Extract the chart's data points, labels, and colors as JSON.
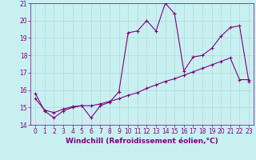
{
  "xlabel": "Windchill (Refroidissement éolien,°C)",
  "background_color": "#c8f0f0",
  "line_color": "#800080",
  "grid_color": "#b0d8d8",
  "xlim": [
    -0.5,
    23.5
  ],
  "ylim": [
    14,
    21
  ],
  "xticks": [
    0,
    1,
    2,
    3,
    4,
    5,
    6,
    7,
    8,
    9,
    10,
    11,
    12,
    13,
    14,
    15,
    16,
    17,
    18,
    19,
    20,
    21,
    22,
    23
  ],
  "yticks": [
    14,
    15,
    16,
    17,
    18,
    19,
    20,
    21
  ],
  "line1_x": [
    0,
    1,
    2,
    3,
    4,
    5,
    6,
    7,
    8,
    9,
    10,
    11,
    12,
    13,
    14,
    15,
    16,
    17,
    18,
    19,
    20,
    21,
    22,
    23
  ],
  "line1_y": [
    15.8,
    14.8,
    14.4,
    14.8,
    15.0,
    15.1,
    14.4,
    15.1,
    15.3,
    15.9,
    19.3,
    19.4,
    20.0,
    19.4,
    21.0,
    20.4,
    17.1,
    17.9,
    18.0,
    18.4,
    19.1,
    19.6,
    19.7,
    16.5
  ],
  "line2_x": [
    0,
    1,
    2,
    3,
    4,
    5,
    6,
    7,
    8,
    9,
    10,
    11,
    12,
    13,
    14,
    15,
    16,
    17,
    18,
    19,
    20,
    21,
    22,
    23
  ],
  "line2_y": [
    15.5,
    14.85,
    14.7,
    14.9,
    15.05,
    15.1,
    15.1,
    15.2,
    15.35,
    15.5,
    15.7,
    15.85,
    16.1,
    16.3,
    16.5,
    16.65,
    16.85,
    17.05,
    17.25,
    17.45,
    17.65,
    17.85,
    16.6,
    16.6
  ],
  "tick_fontsize": 5.5,
  "xlabel_fontsize": 6.5
}
